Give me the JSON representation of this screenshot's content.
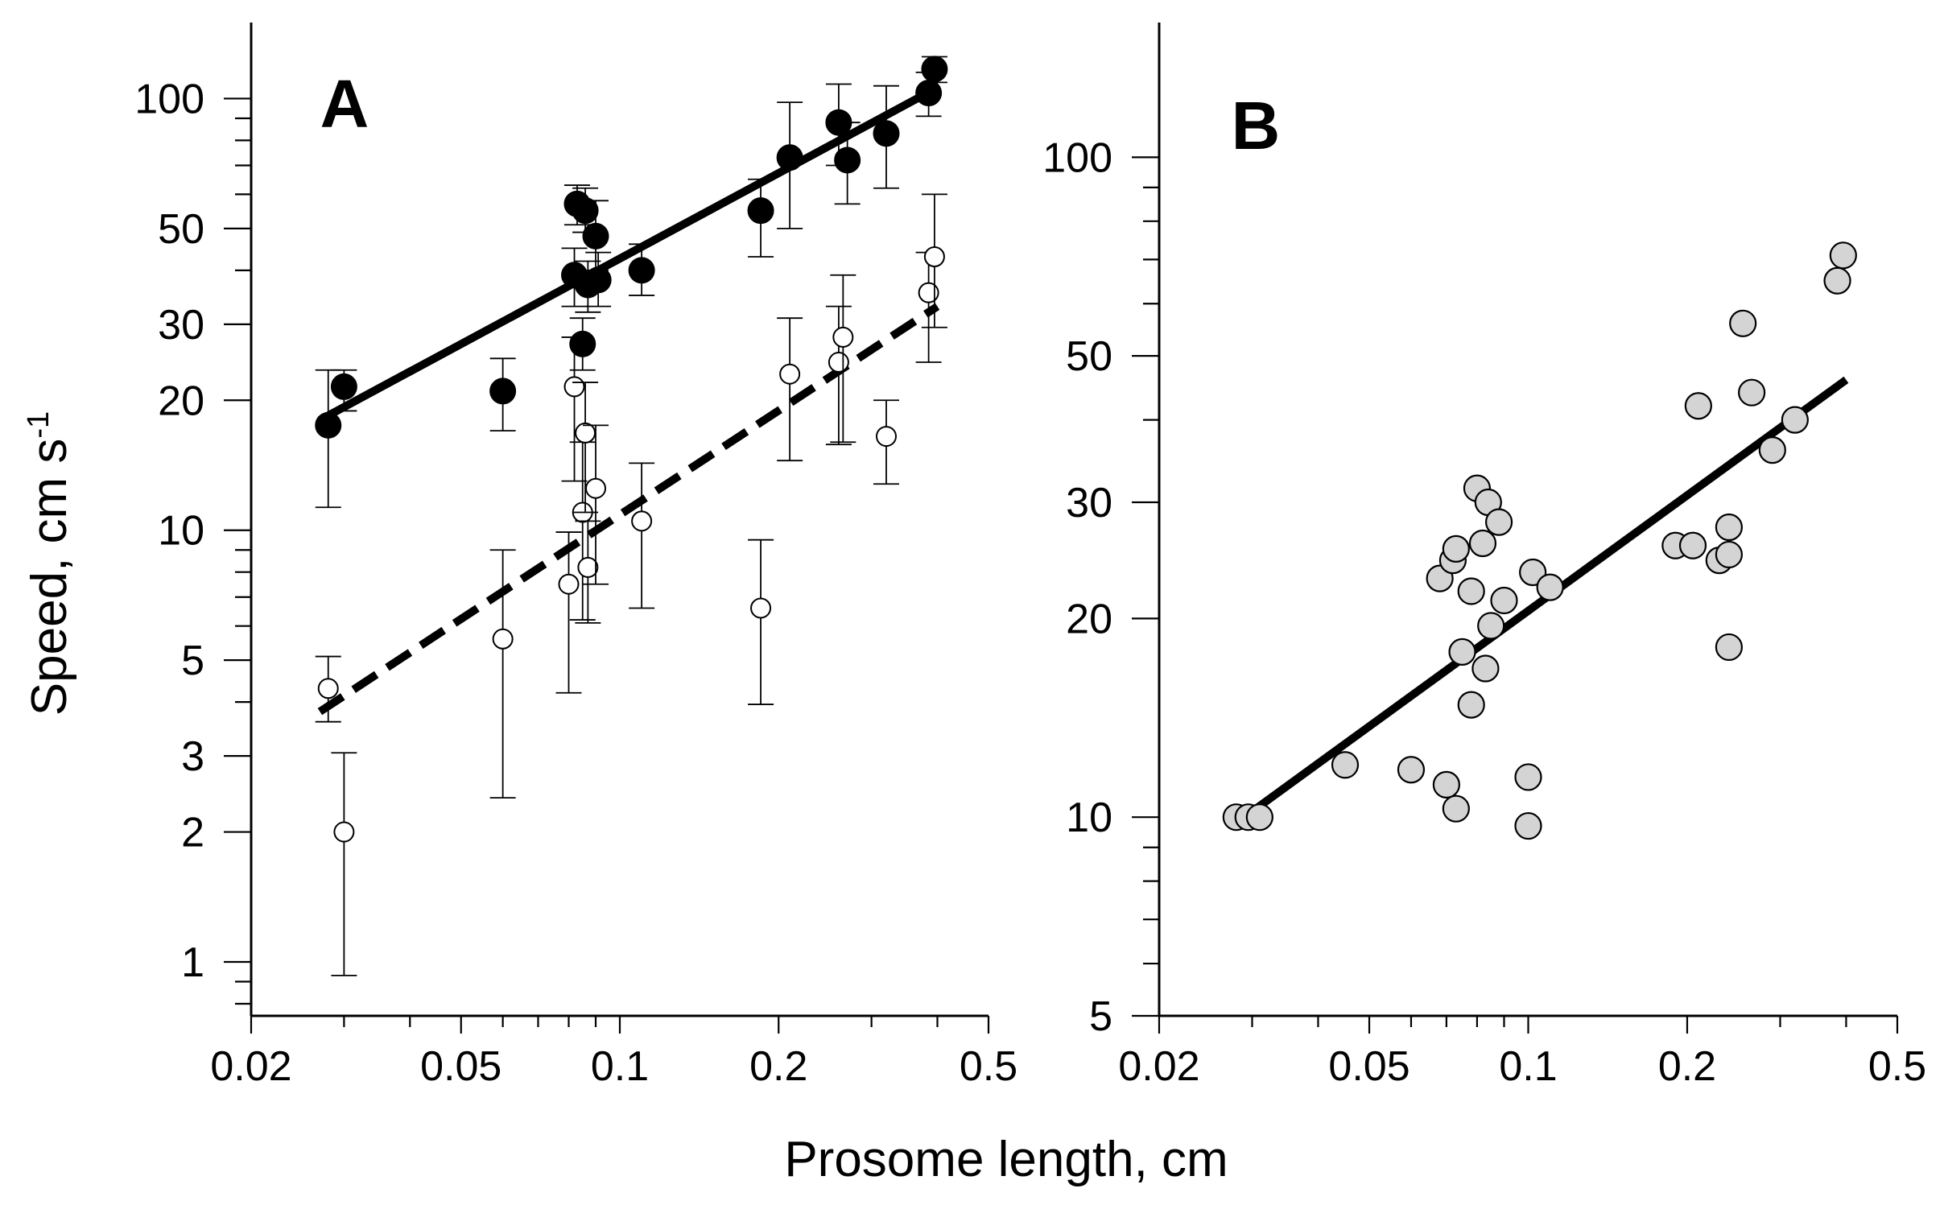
{
  "figure": {
    "xlabel": "Prosome length, cm",
    "ylabel": "Speed, cm s",
    "ylabel_sup": "-1"
  },
  "chart_data": [
    {
      "panel": "A",
      "type": "scatter",
      "title": "A",
      "xscale": "log",
      "yscale": "log",
      "xlim": [
        0.02,
        0.5
      ],
      "ylim": [
        0.75,
        150
      ],
      "xticks": [
        0.02,
        0.05,
        0.1,
        0.2,
        0.5
      ],
      "xtick_labels": [
        "0.02",
        "0.05",
        "0.1",
        "0.2",
        "0.5"
      ],
      "yticks": [
        1,
        2,
        3,
        5,
        10,
        20,
        30,
        50,
        100
      ],
      "ytick_labels": [
        "1",
        "2",
        "3",
        "5",
        "10",
        "20",
        "30",
        "50",
        "100"
      ],
      "series": [
        {
          "name": "filled",
          "marker": "filled-circle",
          "points": [
            [
              0.028,
              17.5,
              11.3,
              23.5
            ],
            [
              0.03,
              21.5,
              18.9,
              23.5
            ],
            [
              0.06,
              21,
              17,
              25
            ],
            [
              0.082,
              39,
              33,
              45
            ],
            [
              0.083,
              57,
              51,
              63
            ],
            [
              0.085,
              27,
              23.5,
              31
            ],
            [
              0.086,
              55,
              49,
              62
            ],
            [
              0.087,
              37,
              32,
              42
            ],
            [
              0.09,
              48,
              40,
              58
            ],
            [
              0.091,
              38,
              33,
              44
            ],
            [
              0.11,
              40,
              35,
              46
            ],
            [
              0.185,
              55,
              43,
              65
            ],
            [
              0.21,
              73,
              50,
              98
            ],
            [
              0.26,
              88,
              70,
              108
            ],
            [
              0.27,
              72,
              57,
              88
            ],
            [
              0.32,
              83,
              62,
              107
            ],
            [
              0.385,
              103,
              91,
              115
            ],
            [
              0.395,
              117,
              109,
              125
            ]
          ],
          "fit": {
            "style": "solid",
            "x": [
              0.027,
              0.4
            ],
            "y": [
              18,
              106
            ]
          }
        },
        {
          "name": "open",
          "marker": "open-circle",
          "points": [
            [
              0.028,
              4.3,
              3.6,
              5.1
            ],
            [
              0.03,
              2,
              0.93,
              3.05
            ],
            [
              0.06,
              5.6,
              2.4,
              9.0
            ],
            [
              0.08,
              7.5,
              4.2,
              9.9
            ],
            [
              0.082,
              21.5,
              13,
              28
            ],
            [
              0.085,
              11,
              6.2,
              16
            ],
            [
              0.086,
              16.8,
              11,
              22
            ],
            [
              0.087,
              8.2,
              6.1,
              10.5
            ],
            [
              0.09,
              12.5,
              7.5,
              17.5
            ],
            [
              0.11,
              10.5,
              6.6,
              14.3
            ],
            [
              0.185,
              6.6,
              3.95,
              9.5
            ],
            [
              0.21,
              23,
              14.5,
              31
            ],
            [
              0.26,
              24.5,
              15.8,
              33
            ],
            [
              0.265,
              28,
              16,
              39
            ],
            [
              0.32,
              16.5,
              12.8,
              20
            ],
            [
              0.385,
              35.5,
              24.5,
              44
            ],
            [
              0.395,
              43,
              29.5,
              60
            ]
          ],
          "fit": {
            "style": "dashed",
            "x": [
              0.027,
              0.4
            ],
            "y": [
              3.8,
              33
            ]
          }
        }
      ]
    },
    {
      "panel": "B",
      "type": "scatter",
      "title": "B",
      "xscale": "log",
      "yscale": "log",
      "xlim": [
        0.02,
        0.5
      ],
      "ylim": [
        5,
        160
      ],
      "xticks": [
        0.02,
        0.05,
        0.1,
        0.2,
        0.5
      ],
      "xtick_labels": [
        "0.02",
        "0.05",
        "0.1",
        "0.2",
        "0.5"
      ],
      "yticks": [
        5,
        10,
        20,
        30,
        50,
        100
      ],
      "ytick_labels": [
        "5",
        "10",
        "20",
        "30",
        "50",
        "100"
      ],
      "series": [
        {
          "name": "gray",
          "marker": "gray-circle",
          "points": [
            [
              0.028,
              10
            ],
            [
              0.0295,
              10
            ],
            [
              0.031,
              10
            ],
            [
              0.045,
              12
            ],
            [
              0.06,
              11.8
            ],
            [
              0.068,
              23
            ],
            [
              0.07,
              11.2
            ],
            [
              0.072,
              24.5
            ],
            [
              0.073,
              25.5
            ],
            [
              0.073,
              10.3
            ],
            [
              0.075,
              17.8
            ],
            [
              0.078,
              22
            ],
            [
              0.078,
              14.8
            ],
            [
              0.08,
              31.5
            ],
            [
              0.082,
              26
            ],
            [
              0.083,
              16.8
            ],
            [
              0.084,
              30
            ],
            [
              0.085,
              19.5
            ],
            [
              0.088,
              28
            ],
            [
              0.09,
              21.3
            ],
            [
              0.1,
              11.5
            ],
            [
              0.1,
              9.7
            ],
            [
              0.102,
              23.5
            ],
            [
              0.11,
              22.3
            ],
            [
              0.19,
              25.8
            ],
            [
              0.205,
              25.8
            ],
            [
              0.21,
              42
            ],
            [
              0.23,
              24.5
            ],
            [
              0.24,
              27.5
            ],
            [
              0.24,
              25
            ],
            [
              0.24,
              18.1
            ],
            [
              0.255,
              56
            ],
            [
              0.265,
              44
            ],
            [
              0.29,
              36
            ],
            [
              0.32,
              40
            ],
            [
              0.385,
              65
            ],
            [
              0.395,
              71
            ]
          ],
          "fit": {
            "style": "solid",
            "x": [
              0.028,
              0.4
            ],
            "y": [
              9.8,
              46
            ]
          }
        }
      ]
    }
  ]
}
